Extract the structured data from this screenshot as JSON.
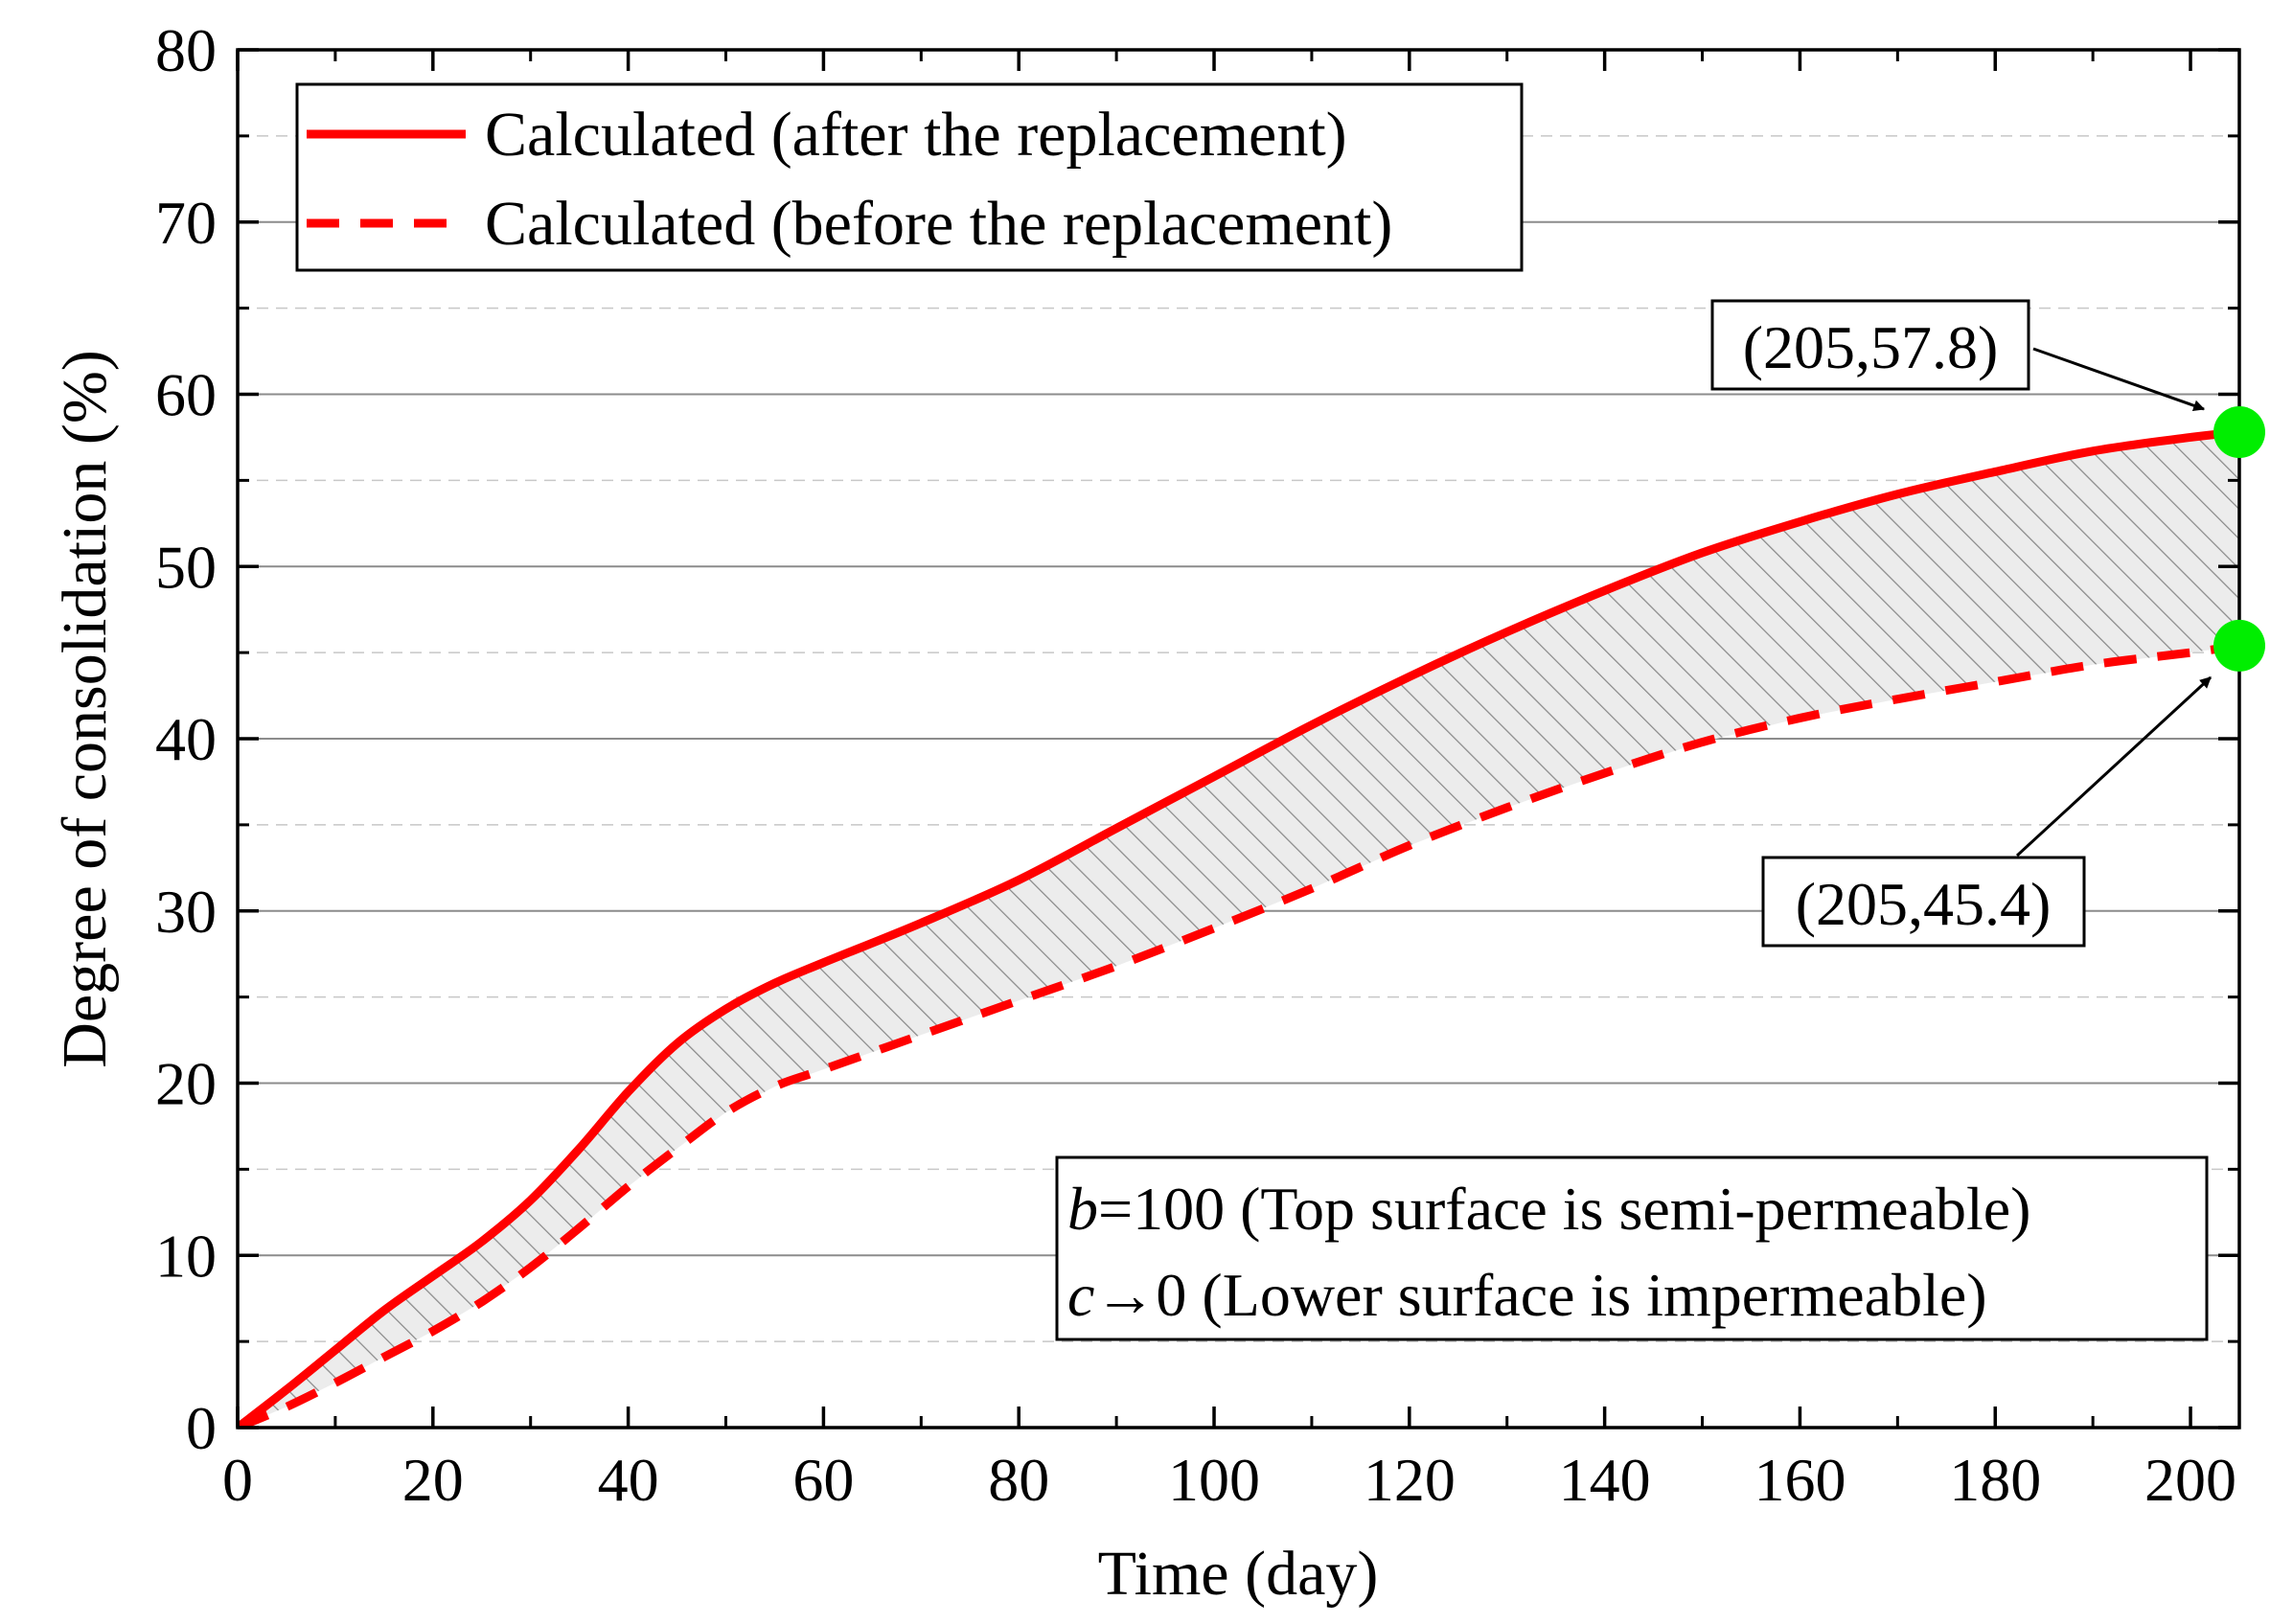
{
  "chart_data": {
    "type": "line",
    "title": "",
    "xlabel": "Time (day)",
    "ylabel": "Degree of consolidation (%)",
    "xlim": [
      0,
      205
    ],
    "ylim": [
      0,
      80
    ],
    "x_ticks": [
      0,
      20,
      40,
      60,
      80,
      100,
      120,
      140,
      160,
      180,
      200
    ],
    "y_ticks": [
      0,
      10,
      20,
      30,
      40,
      50,
      60,
      70,
      80
    ],
    "x_tick_labels": [
      "0",
      "20",
      "40",
      "60",
      "80",
      "100",
      "120",
      "140",
      "160",
      "180",
      "200"
    ],
    "y_tick_labels": [
      "0",
      "10",
      "20",
      "30",
      "40",
      "50",
      "60",
      "70",
      "80"
    ],
    "grid": true,
    "legend_position": "top-left",
    "series": [
      {
        "name": "Calculated (after the replacement)",
        "style": "solid",
        "color": "#ff0000",
        "x": [
          0,
          5,
          10,
          15,
          20,
          25,
          30,
          35,
          40,
          45,
          50,
          55,
          60,
          70,
          80,
          90,
          100,
          110,
          120,
          130,
          140,
          150,
          160,
          170,
          180,
          190,
          200,
          205
        ],
        "y": [
          0,
          2.2,
          4.5,
          6.8,
          8.8,
          10.8,
          13.2,
          16.2,
          19.5,
          22.3,
          24.3,
          25.8,
          27.0,
          29.3,
          31.8,
          34.8,
          37.8,
          40.8,
          43.6,
          46.2,
          48.6,
          50.8,
          52.6,
          54.2,
          55.5,
          56.7,
          57.5,
          57.8
        ]
      },
      {
        "name": "Calculated (before the replacement)",
        "style": "dashed",
        "color": "#ff0000",
        "x": [
          0,
          5,
          10,
          15,
          20,
          25,
          30,
          35,
          40,
          45,
          50,
          55,
          60,
          70,
          80,
          90,
          100,
          110,
          120,
          130,
          140,
          150,
          160,
          170,
          180,
          190,
          200,
          205
        ],
        "y": [
          0,
          1.2,
          2.6,
          4.1,
          5.6,
          7.3,
          9.3,
          11.6,
          14.0,
          16.2,
          18.3,
          19.8,
          20.8,
          22.8,
          24.8,
          26.8,
          29.0,
          31.3,
          33.8,
          36.0,
          38.0,
          39.8,
          41.2,
          42.3,
          43.3,
          44.3,
          45.0,
          45.4
        ]
      }
    ],
    "shaded_region": "hatched area between the two curves",
    "markers": [
      {
        "x": 205,
        "y": 57.8,
        "label": "(205,57.8)",
        "color": "#00ee00"
      },
      {
        "x": 205,
        "y": 45.4,
        "label": "(205,45.4)",
        "color": "#00ee00"
      }
    ],
    "annotation_lines": [
      {
        "var": "b",
        "text": "=100 (Top surface is semi-permeable)"
      },
      {
        "var": "c",
        "text": "→0   (Lower surface is impermeable)"
      }
    ]
  }
}
